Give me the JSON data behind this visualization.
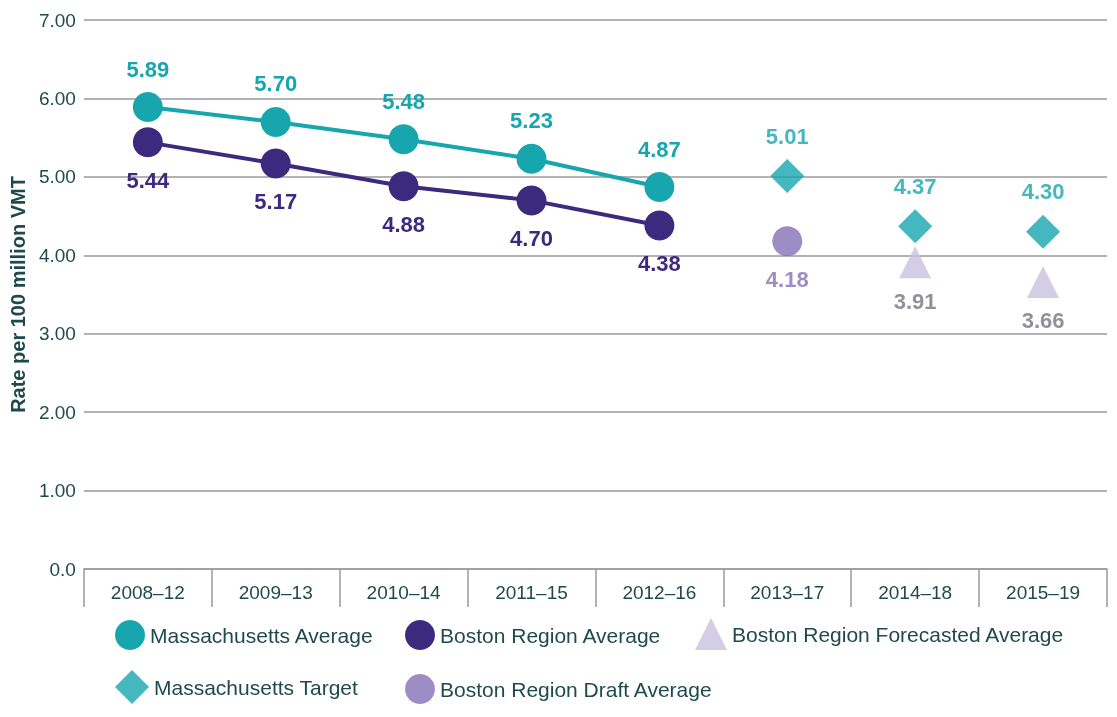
{
  "chart_data": {
    "type": "line",
    "ylabel": "Rate per 100 million VMT",
    "categories": [
      "2008–12",
      "2009–13",
      "2010–14",
      "2011–15",
      "2012–16",
      "2013–17",
      "2014–18",
      "2015–19"
    ],
    "series": [
      {
        "name": "Massachusetts Average",
        "marker": "circle",
        "color": "#17a5ae",
        "values": [
          5.89,
          5.7,
          5.48,
          5.23,
          4.87,
          null,
          null,
          null
        ],
        "value_labels": [
          "5.89",
          "5.70",
          "5.48",
          "5.23",
          "4.87",
          null,
          null,
          null
        ]
      },
      {
        "name": "Boston Region Average",
        "marker": "circle",
        "color": "#3b2a7d",
        "values": [
          5.44,
          5.17,
          4.88,
          4.7,
          4.38,
          null,
          null,
          null
        ],
        "value_labels": [
          "5.44",
          "5.17",
          "4.88",
          "4.70",
          "4.38",
          null,
          null,
          null
        ]
      },
      {
        "name": "Boston Region Forecasted Average",
        "type": "scatter",
        "marker": "triangle",
        "color": "#c8c2df",
        "values": [
          null,
          null,
          null,
          null,
          null,
          null,
          3.91,
          3.66
        ],
        "value_labels": [
          null,
          null,
          null,
          null,
          null,
          null,
          "3.91",
          "3.66"
        ]
      },
      {
        "name": "Massachusetts Target",
        "type": "scatter",
        "marker": "diamond",
        "color": "#17a5ae",
        "values": [
          null,
          null,
          null,
          null,
          null,
          5.01,
          4.37,
          4.3
        ],
        "value_labels": [
          null,
          null,
          null,
          null,
          null,
          "5.01",
          "4.37",
          "4.30"
        ]
      },
      {
        "name": "Boston Region Draft Average",
        "type": "scatter",
        "marker": "circle",
        "color": "#8470b5",
        "values": [
          null,
          null,
          null,
          null,
          null,
          4.18,
          null,
          null
        ],
        "value_labels": [
          null,
          null,
          null,
          null,
          null,
          "4.18",
          null,
          null
        ]
      }
    ],
    "ylim": [
      0,
      7
    ],
    "yticks": [
      {
        "value": 0,
        "label": "0.0"
      },
      {
        "value": 1,
        "label": "1.00"
      },
      {
        "value": 2,
        "label": "2.00"
      },
      {
        "value": 3,
        "label": "3.00"
      },
      {
        "value": 4,
        "label": "4.00"
      },
      {
        "value": 5,
        "label": "5.00"
      },
      {
        "value": 6,
        "label": "6.00"
      },
      {
        "value": 7,
        "label": "7.00"
      }
    ],
    "grid": "y",
    "legend": "bottom",
    "line_style": "solid"
  }
}
